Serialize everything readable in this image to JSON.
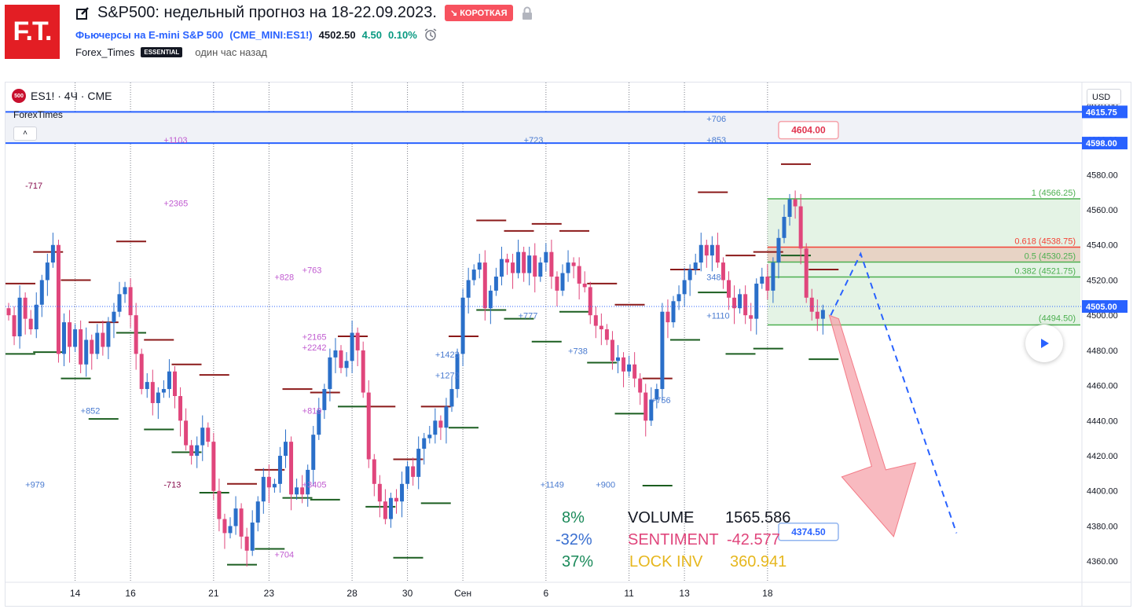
{
  "header": {
    "logo_text": "F.T.",
    "title": "S&P500: недельный прогноз на 18-22.09.2023.",
    "badge": "↘ КОРОТКАЯ",
    "symbol_name": "Фьючерсы на E-mini S&P 500",
    "symbol_ticker": "(CME_MINI:ES1!)",
    "price": "4502.50",
    "change": "4.50",
    "change_pct": "0.10%",
    "author": "Forex_Times",
    "author_badge": "ESSENTIAL",
    "published": "один час назад"
  },
  "chart_header": {
    "legend": "ES1! · 4Ч · CME",
    "legend_logo": "500",
    "indicator": "ForexTimes",
    "collapse": "˄",
    "currency": "USD"
  },
  "colors": {
    "up": "#2a6fc9",
    "down": "#e0467c",
    "brand_red": "#e31e24",
    "level_blue": "#2962ff",
    "fib_green": "#4caf50",
    "fib_red": "#f44336",
    "arrow_red": "#f5a3ab",
    "resist_line": "#8b1a1a",
    "support_line": "#1b5e20"
  },
  "chart_data": {
    "type": "candlestick",
    "ylim": [
      4348,
      4628
    ],
    "y_ticks": [
      4360,
      4380,
      4400,
      4420,
      4440,
      4460,
      4480,
      4500,
      4520,
      4540,
      4560,
      4580,
      4600,
      4620
    ],
    "x_ticks": [
      {
        "label": "14",
        "i": 12
      },
      {
        "label": "16",
        "i": 22
      },
      {
        "label": "21",
        "i": 37
      },
      {
        "label": "23",
        "i": 47
      },
      {
        "label": "28",
        "i": 62
      },
      {
        "label": "30",
        "i": 72
      },
      {
        "label": "Сен",
        "i": 82
      },
      {
        "label": "6",
        "i": 97
      },
      {
        "label": "11",
        "i": 112
      },
      {
        "label": "13",
        "i": 122
      },
      {
        "label": "18",
        "i": 137
      }
    ],
    "series_close": [
      4500,
      4488,
      4510,
      4498,
      4492,
      4506,
      4520,
      4530,
      4540,
      4478,
      4496,
      4482,
      4492,
      4472,
      4486,
      4478,
      4490,
      4482,
      4496,
      4502,
      4512,
      4516,
      4500,
      4478,
      4458,
      4462,
      4450,
      4456,
      4458,
      4468,
      4454,
      4440,
      4426,
      4420,
      4426,
      4436,
      4428,
      4400,
      4384,
      4376,
      4380,
      4390,
      4374,
      4366,
      4382,
      4394,
      4408,
      4402,
      4404,
      4420,
      4428,
      4398,
      4402,
      4398,
      4412,
      4432,
      4446,
      4458,
      4476,
      4480,
      4470,
      4474,
      4490,
      4480,
      4456,
      4418,
      4404,
      4394,
      4384,
      4396,
      4394,
      4404,
      4414,
      4408,
      4424,
      4430,
      4432,
      4440,
      4436,
      4448,
      4458,
      4478,
      4510,
      4520,
      4526,
      4530,
      4504,
      4514,
      4522,
      4532,
      4530,
      4524,
      4536,
      4524,
      4534,
      4522,
      4530,
      4536,
      4522,
      4514,
      4524,
      4530,
      4528,
      4518,
      4516,
      4500,
      4494,
      4492,
      4486,
      4474,
      4476,
      4468,
      4472,
      4464,
      4456,
      4440,
      4452,
      4458,
      4502,
      4496,
      4508,
      4512,
      4520,
      4526,
      4530,
      4540,
      4534,
      4540,
      4530,
      4520,
      4510,
      4504,
      4512,
      4500,
      4498,
      4518,
      4522,
      4514,
      4530,
      4544,
      4556,
      4566,
      4562,
      4538,
      4510,
      4502,
      4498,
      4503
    ],
    "y_labels": [
      {
        "y": 4615.75,
        "text": "4615.75",
        "kind": "blue"
      },
      {
        "y": 4598.0,
        "text": "4598.00",
        "kind": "blue"
      },
      {
        "y": 4505.0,
        "text": "4505.00",
        "kind": "blue"
      }
    ],
    "horizontal_levels": [
      4615.75,
      4598.0
    ],
    "fib_levels": [
      {
        "label": "1 (4566.25)",
        "y": 4566.25
      },
      {
        "label": "0.618 (4538.75)",
        "y": 4538.75
      },
      {
        "label": "0.5 (4530.25)",
        "y": 4530.25
      },
      {
        "label": "0.382 (4521.75)",
        "y": 4521.75
      }
    ],
    "fib_bottom_label": "(4494.50)",
    "targets": [
      {
        "label": "4604.00",
        "y": 4604.0,
        "kind": "red"
      },
      {
        "label": "4374.50",
        "y": 4374.5,
        "kind": "blue"
      }
    ],
    "volume_annotations": [
      {
        "label": "+706",
        "i": 126,
        "y": 4610
      },
      {
        "label": "+853",
        "i": 126,
        "y": 4598
      },
      {
        "label": "+723",
        "i": 93,
        "y": 4598
      },
      {
        "label": "+1103",
        "i": 28,
        "y": 4598
      },
      {
        "label": "-717",
        "i": 3,
        "y": 4572
      },
      {
        "label": "+2365",
        "i": 28,
        "y": 4562
      },
      {
        "label": "+828",
        "i": 48,
        "y": 4520
      },
      {
        "label": "+763",
        "i": 53,
        "y": 4524
      },
      {
        "label": "+2165",
        "i": 53,
        "y": 4486
      },
      {
        "label": "+2242",
        "i": 53,
        "y": 4480
      },
      {
        "label": "+1423",
        "i": 77,
        "y": 4476
      },
      {
        "label": "+1272",
        "i": 77,
        "y": 4464
      },
      {
        "label": "+852",
        "i": 13,
        "y": 4444
      },
      {
        "label": "+819",
        "i": 53,
        "y": 4444
      },
      {
        "label": "+979",
        "i": 3,
        "y": 4402
      },
      {
        "label": "-713",
        "i": 28,
        "y": 4402
      },
      {
        "label": "+3405",
        "i": 53,
        "y": 4402
      },
      {
        "label": "+704",
        "i": 48,
        "y": 4362
      },
      {
        "label": "+738",
        "i": 101,
        "y": 4478
      },
      {
        "label": "+756",
        "i": 116,
        "y": 4450
      },
      {
        "label": "+1149",
        "i": 96,
        "y": 4402
      },
      {
        "label": "+900",
        "i": 106,
        "y": 4402
      },
      {
        "label": "+777",
        "i": 92,
        "y": 4498
      },
      {
        "label": "+1110",
        "i": 126,
        "y": 4498
      },
      {
        "label": "348",
        "i": 126,
        "y": 4520
      }
    ],
    "stats": {
      "pct1": "8%",
      "pct2": "-32%",
      "pct3": "37%",
      "volume_label": "VOLUME",
      "volume_value": "1565.586",
      "sentiment_label": "SENTIMENT",
      "sentiment_value": "-42.577",
      "lockinv_label": "LOCK INV",
      "lockinv_value": "360.941"
    }
  }
}
